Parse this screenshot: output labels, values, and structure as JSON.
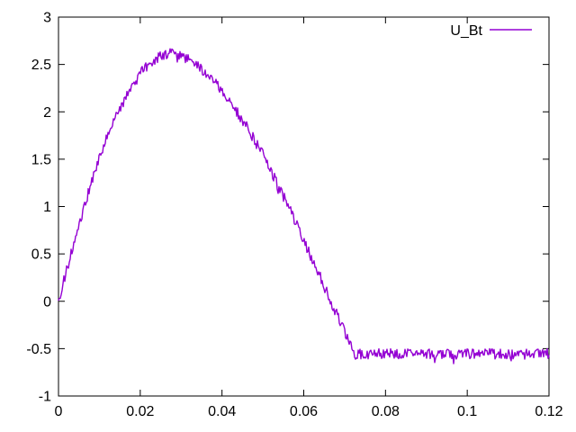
{
  "window": {
    "background": "#ffffff"
  },
  "chart_data": {
    "type": "line",
    "title": "",
    "xlabel": "",
    "ylabel": "",
    "xlim": [
      0,
      0.12
    ],
    "ylim": [
      -1,
      3
    ],
    "grid": false,
    "legend_position": "top-right-inside",
    "x_ticks": [
      0,
      0.02,
      0.04,
      0.06,
      0.08,
      0.1,
      0.12
    ],
    "x_tick_labels": [
      "0",
      "0.02",
      "0.04",
      "0.06",
      "0.08",
      "0.1",
      "0.12"
    ],
    "y_ticks": [
      -1,
      -0.5,
      0,
      0.5,
      1,
      1.5,
      2,
      2.5,
      3
    ],
    "y_tick_labels": [
      "-1",
      "-0.5",
      "0",
      "0.5",
      "1",
      "1.5",
      "2",
      "2.5",
      "3"
    ],
    "border_color": "#000000",
    "text_color": "#000000",
    "noise_amplitude": 0.055,
    "series": [
      {
        "name": "U_Bt",
        "color": "#9400d3",
        "peak": {
          "x": 0.028,
          "y": 2.63
        },
        "flat_tail_value": -0.555,
        "points": [
          [
            0.0,
            0.0
          ],
          [
            0.002,
            0.33
          ],
          [
            0.004,
            0.65
          ],
          [
            0.006,
            0.96
          ],
          [
            0.008,
            1.25
          ],
          [
            0.01,
            1.51
          ],
          [
            0.012,
            1.74
          ],
          [
            0.014,
            1.94
          ],
          [
            0.016,
            2.12
          ],
          [
            0.018,
            2.27
          ],
          [
            0.02,
            2.4
          ],
          [
            0.022,
            2.5
          ],
          [
            0.024,
            2.565
          ],
          [
            0.026,
            2.605
          ],
          [
            0.028,
            2.62
          ],
          [
            0.03,
            2.6
          ],
          [
            0.032,
            2.54
          ],
          [
            0.034,
            2.48
          ],
          [
            0.036,
            2.41
          ],
          [
            0.038,
            2.32
          ],
          [
            0.04,
            2.22
          ],
          [
            0.042,
            2.1
          ],
          [
            0.044,
            1.98
          ],
          [
            0.046,
            1.85
          ],
          [
            0.048,
            1.7
          ],
          [
            0.05,
            1.55
          ],
          [
            0.052,
            1.38
          ],
          [
            0.054,
            1.2
          ],
          [
            0.056,
            1.02
          ],
          [
            0.058,
            0.83
          ],
          [
            0.06,
            0.64
          ],
          [
            0.062,
            0.45
          ],
          [
            0.064,
            0.26
          ],
          [
            0.066,
            0.06
          ],
          [
            0.068,
            -0.13
          ],
          [
            0.07,
            -0.33
          ],
          [
            0.072,
            -0.52
          ],
          [
            0.0725,
            -0.555
          ],
          [
            0.08,
            -0.555
          ],
          [
            0.09,
            -0.555
          ],
          [
            0.1,
            -0.555
          ],
          [
            0.11,
            -0.555
          ],
          [
            0.12,
            -0.555
          ]
        ]
      }
    ]
  },
  "legend": {
    "label": "U_Bt"
  }
}
